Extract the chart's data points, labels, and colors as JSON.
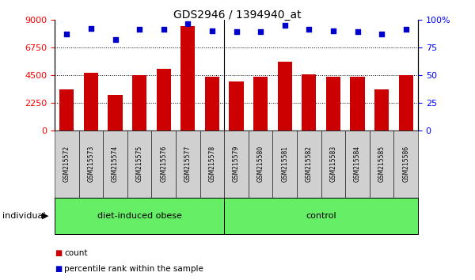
{
  "title": "GDS2946 / 1394940_at",
  "samples": [
    "GSM215572",
    "GSM215573",
    "GSM215574",
    "GSM215575",
    "GSM215576",
    "GSM215577",
    "GSM215578",
    "GSM215579",
    "GSM215580",
    "GSM215581",
    "GSM215582",
    "GSM215583",
    "GSM215584",
    "GSM215585",
    "GSM215586"
  ],
  "counts": [
    3300,
    4700,
    2900,
    4500,
    5000,
    8500,
    4350,
    3950,
    4350,
    5600,
    4550,
    4350,
    4350,
    3300,
    4500
  ],
  "percentiles": [
    87,
    92,
    82,
    91,
    91,
    96,
    90,
    89,
    89,
    95,
    91,
    90,
    89,
    87,
    91
  ],
  "groups": [
    {
      "label": "diet-induced obese",
      "start": 0,
      "end": 7
    },
    {
      "label": "control",
      "start": 7,
      "end": 15
    }
  ],
  "bar_color": "#cc0000",
  "dot_color": "#0000cc",
  "group_color": "#66ee66",
  "cell_color": "#d0d0d0",
  "ylim_left": [
    0,
    9000
  ],
  "ylim_right": [
    0,
    100
  ],
  "yticks_left": [
    0,
    2250,
    4500,
    6750,
    9000
  ],
  "yticks_right": [
    0,
    25,
    50,
    75,
    100
  ],
  "grid_values": [
    2250,
    4500,
    6750
  ],
  "group_separator": 7,
  "individual_label": "individual",
  "legend_count_label": "count",
  "legend_pct_label": "percentile rank within the sample"
}
